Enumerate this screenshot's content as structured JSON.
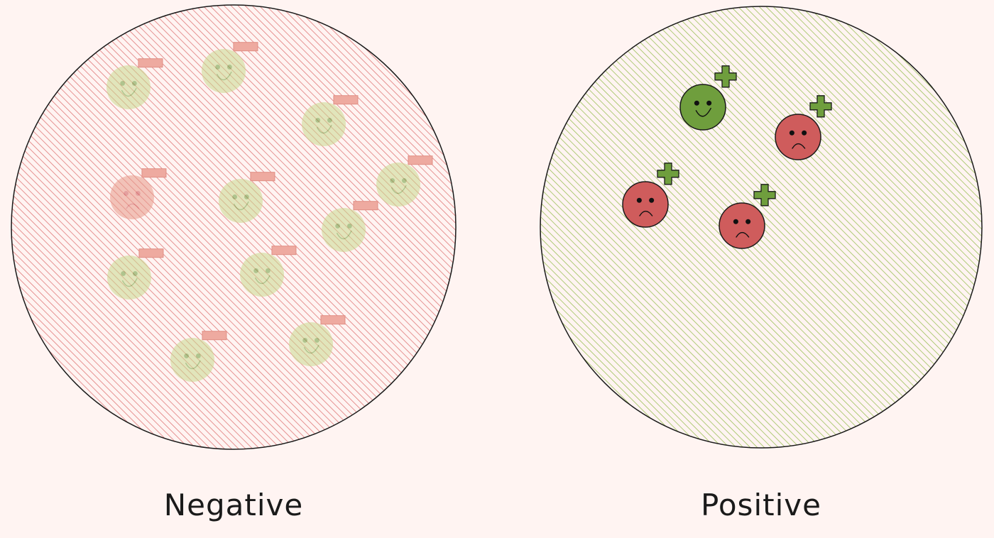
{
  "colors": {
    "background": "#fff4f2",
    "negative_hatch": "#e07a7a",
    "positive_hatch": "#9cc15a",
    "outline": "#1a1a1a",
    "happy_face": "#6f9e3d",
    "sad_face": "#cf5c5c",
    "minus_badge": "#e8a39a",
    "plus_badge": "#6f9e3d"
  },
  "panels": [
    {
      "id": "negative",
      "label": "Negative",
      "fill": "negative_hatch",
      "faded": true,
      "badge": "minus",
      "faces": [
        {
          "mood": "happy"
        },
        {
          "mood": "happy"
        },
        {
          "mood": "happy"
        },
        {
          "mood": "sad"
        },
        {
          "mood": "happy"
        },
        {
          "mood": "happy"
        },
        {
          "mood": "happy"
        },
        {
          "mood": "happy"
        },
        {
          "mood": "happy"
        },
        {
          "mood": "happy"
        },
        {
          "mood": "happy"
        }
      ]
    },
    {
      "id": "positive",
      "label": "Positive",
      "fill": "positive_hatch",
      "faded": false,
      "badge": "plus",
      "faces": [
        {
          "mood": "happy"
        },
        {
          "mood": "sad"
        },
        {
          "mood": "sad"
        },
        {
          "mood": "sad"
        }
      ]
    }
  ]
}
